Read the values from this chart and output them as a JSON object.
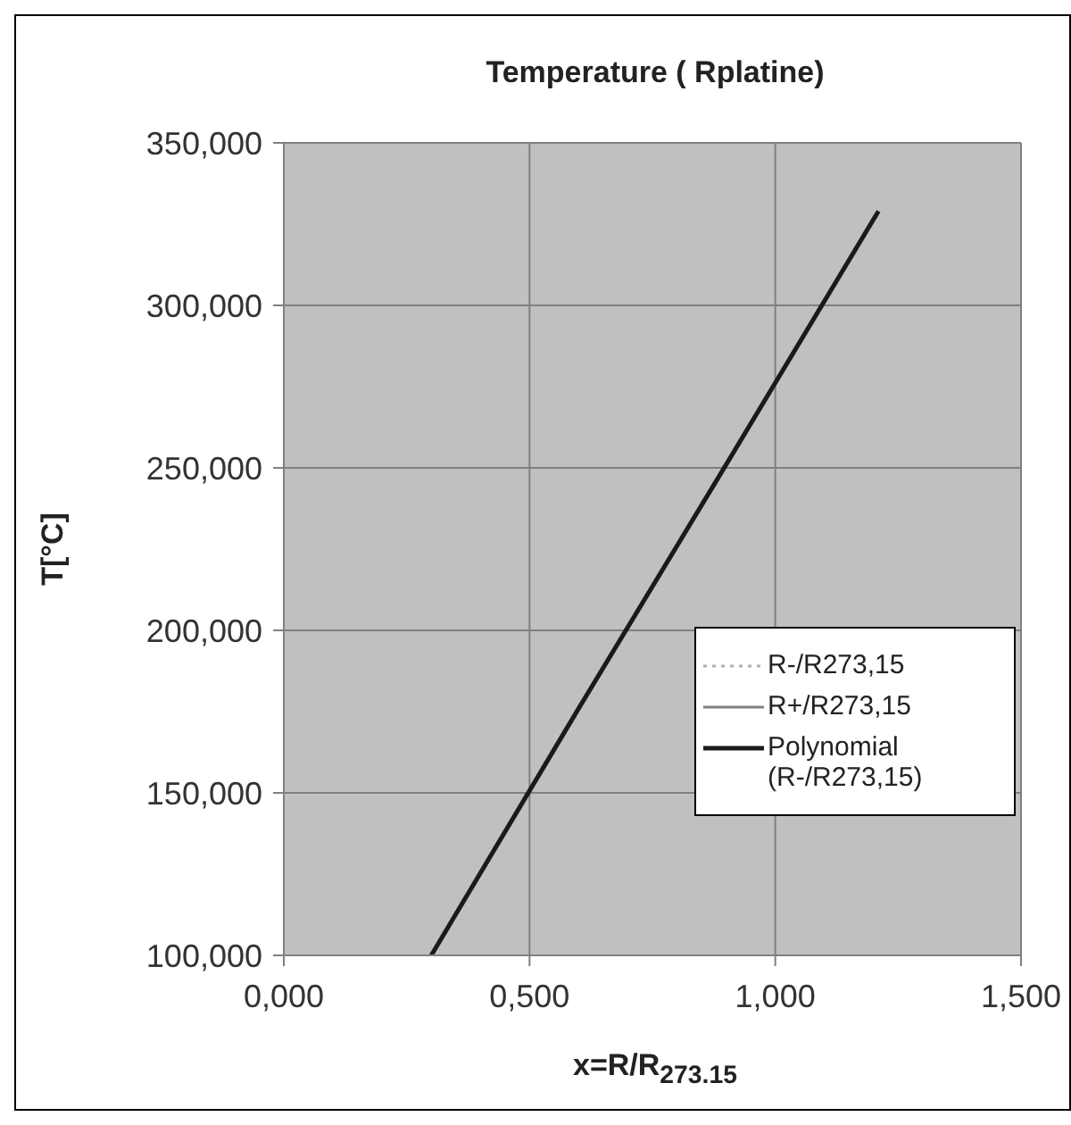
{
  "chart_data": {
    "type": "line",
    "title": "Temperature ( Rplatine)",
    "xlabel": "x=R/R$_{273.15}$",
    "ylabel": "T[°C]",
    "xlim": [
      0,
      1.5
    ],
    "xticks": [
      {
        "value": 0,
        "label": "0,000"
      },
      {
        "value": 0.5,
        "label": "0,500"
      },
      {
        "value": 1,
        "label": "1,000"
      },
      {
        "value": 1.5,
        "label": "1,500"
      }
    ],
    "ylim": [
      100,
      350
    ],
    "yticks": [
      {
        "value": 100,
        "label": "100,000"
      },
      {
        "value": 150,
        "label": "150,000"
      },
      {
        "value": 200,
        "label": "200,000"
      },
      {
        "value": 250,
        "label": "250,000"
      },
      {
        "value": 300,
        "label": "300,000"
      },
      {
        "value": 350,
        "label": "350,000"
      }
    ],
    "grid": true,
    "legend": "right",
    "marker": "none",
    "series": [
      {
        "name": "R-/R273,15",
        "color": "#b0b0b0",
        "line_style": "dotted"
      },
      {
        "name": "R+/R273,15",
        "color": "#808080",
        "line_style": "solid"
      },
      {
        "name": "Polynomial (R-/R273,15)",
        "color": "#1a1a1a",
        "line_style": "solid",
        "x": [
          0.3,
          0.6,
          0.9,
          1.21
        ],
        "values": [
          100,
          176,
          251,
          329
        ]
      }
    ]
  }
}
